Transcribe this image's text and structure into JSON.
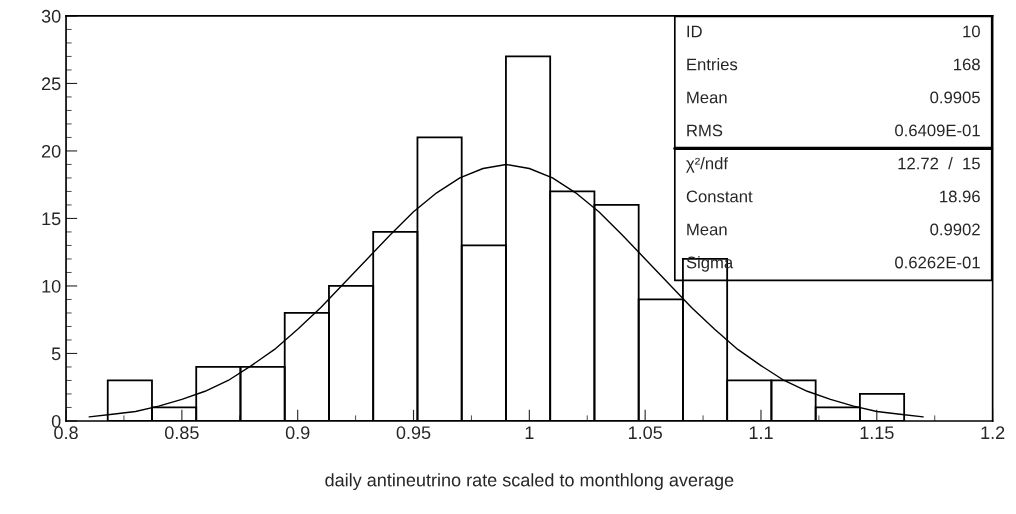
{
  "chart_data": {
    "type": "histogram",
    "xlabel": "daily antineutrino rate scaled to monthlong average",
    "bins": [
      0.818,
      0.8371,
      0.8562,
      0.8753,
      0.8944,
      0.9135,
      0.9326,
      0.9517,
      0.9708,
      0.9899,
      1.009,
      1.0281,
      1.0472,
      1.0663,
      1.0854,
      1.1045,
      1.1236,
      1.1427,
      1.1618
    ],
    "values": [
      3,
      1,
      4,
      4,
      8,
      10,
      14,
      21,
      13,
      27,
      17,
      16,
      9,
      12,
      3,
      3,
      1,
      2
    ],
    "color": "#000000",
    "series": [
      {
        "type": "line",
        "color": "#000000",
        "x": [
          0.81,
          0.82,
          0.83,
          0.84,
          0.85,
          0.86,
          0.87,
          0.88,
          0.89,
          0.9,
          0.91,
          0.92,
          0.93,
          0.94,
          0.95,
          0.96,
          0.97,
          0.98,
          0.99,
          1.0,
          1.01,
          1.02,
          1.03,
          1.04,
          1.05,
          1.06,
          1.07,
          1.08,
          1.09,
          1.1,
          1.11,
          1.12,
          1.13,
          1.14,
          1.15,
          1.16,
          1.17
        ],
        "values": [
          0.3,
          0.5,
          0.7,
          1.1,
          1.6,
          2.2,
          3.0,
          4.1,
          5.3,
          6.8,
          8.4,
          10.2,
          12.0,
          13.8,
          15.5,
          16.9,
          18.0,
          18.7,
          19.0,
          18.7,
          18.0,
          16.9,
          15.5,
          13.8,
          12.0,
          10.2,
          8.4,
          6.8,
          5.3,
          4.1,
          3.0,
          2.2,
          1.6,
          1.1,
          0.7,
          0.5,
          0.3
        ]
      }
    ],
    "xlim": [
      0.8,
      1.2
    ],
    "xticks": [
      0.8,
      0.85,
      0.9,
      0.95,
      1,
      1.05,
      1.1,
      1.15,
      1.2
    ],
    "ylim": [
      0,
      30
    ],
    "yticks": [
      0,
      5,
      10,
      15,
      20,
      25,
      30
    ],
    "grid": false,
    "legend": false,
    "annotations": [
      "ID 10",
      "Entries 168",
      "Mean 0.9905",
      "RMS 0.6409E-01",
      "χ²/ndf 12.72  /  15",
      "Constant 18.96",
      "Mean 0.9902",
      "Sigma 0.6262E-01"
    ]
  }
}
